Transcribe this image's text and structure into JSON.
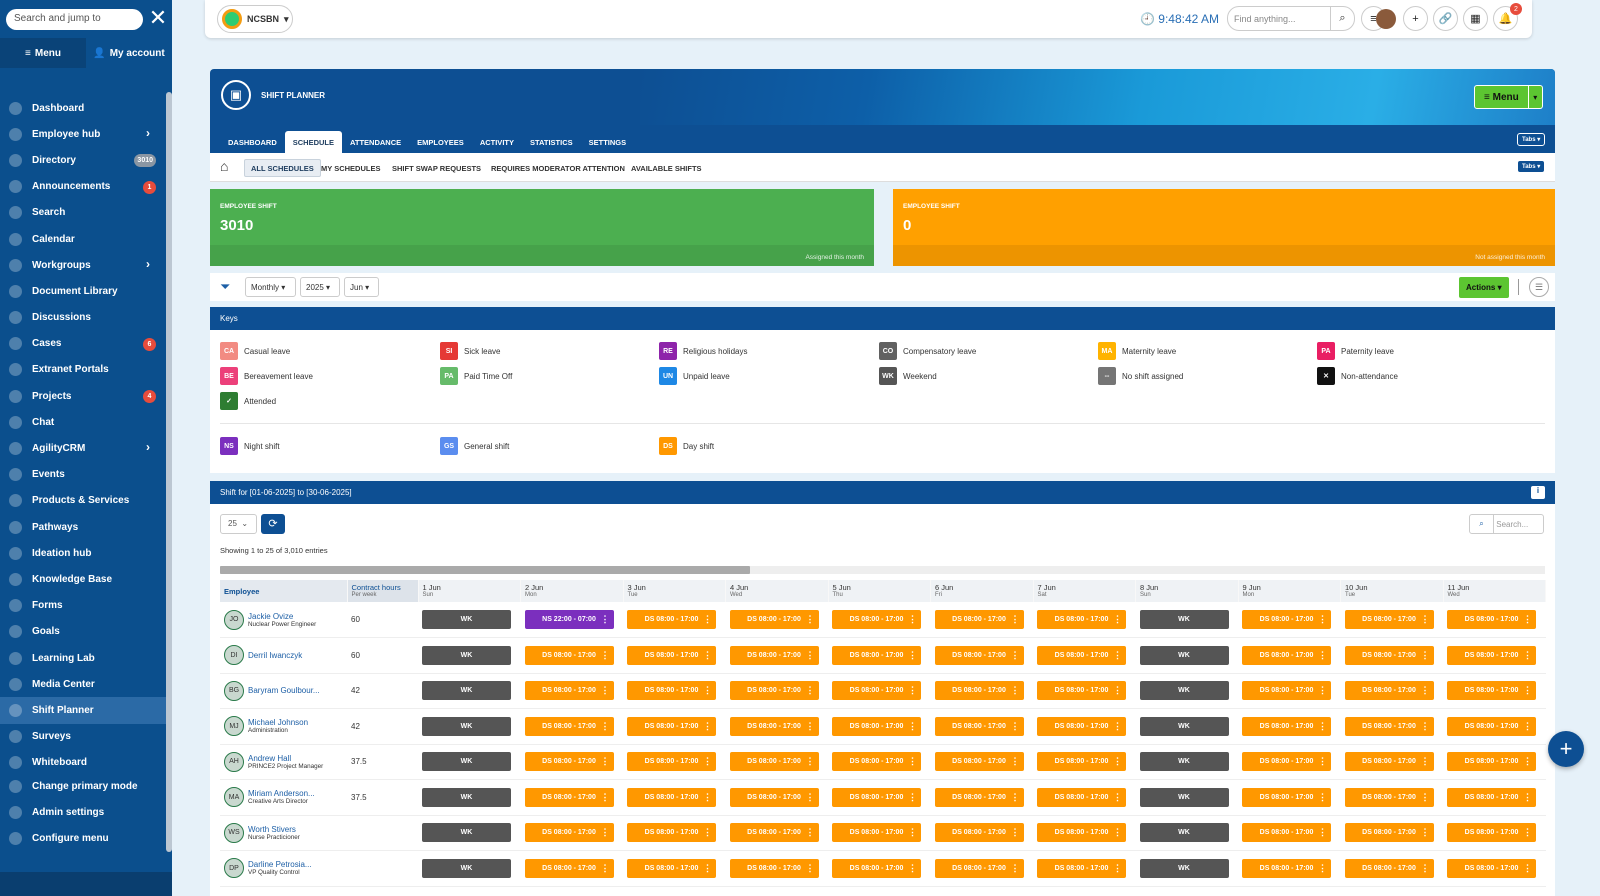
{
  "sidebar": {
    "search_placeholder": "Search and jump to",
    "tab_menu": "Menu",
    "tab_account": "My account",
    "items": [
      {
        "label": "Dashboard",
        "icon": "dashboard-icon"
      },
      {
        "label": "Employee hub",
        "icon": "people-icon",
        "chevron": true
      },
      {
        "label": "Directory",
        "icon": "directory-icon",
        "badge": "3010",
        "badge_style": "grey"
      },
      {
        "label": "Announcements",
        "icon": "megaphone-icon",
        "badge": "1"
      },
      {
        "label": "Search",
        "icon": "search-icon"
      },
      {
        "label": "Calendar",
        "icon": "calendar-icon"
      },
      {
        "label": "Workgroups",
        "icon": "group-icon",
        "chevron": true
      },
      {
        "label": "Document Library",
        "icon": "document-icon"
      },
      {
        "label": "Discussions",
        "icon": "chat-bubble-icon"
      },
      {
        "label": "Cases",
        "icon": "briefcase-icon",
        "badge": "6"
      },
      {
        "label": "Extranet Portals",
        "icon": "portal-icon"
      },
      {
        "label": "Projects",
        "icon": "project-icon",
        "badge": "4"
      },
      {
        "label": "Chat",
        "icon": "chat-icon"
      },
      {
        "label": "AgilityCRM",
        "icon": "crm-icon",
        "chevron": true
      },
      {
        "label": "Events",
        "icon": "event-icon"
      },
      {
        "label": "Products & Services",
        "icon": "product-icon"
      },
      {
        "label": "Pathways",
        "icon": "pathway-icon"
      },
      {
        "label": "Ideation hub",
        "icon": "lightbulb-icon"
      },
      {
        "label": "Knowledge Base",
        "icon": "book-icon"
      },
      {
        "label": "Forms",
        "icon": "form-icon"
      },
      {
        "label": "Goals",
        "icon": "target-icon"
      },
      {
        "label": "Learning Lab",
        "icon": "graduation-icon"
      },
      {
        "label": "Media Center",
        "icon": "media-icon"
      },
      {
        "label": "Shift Planner",
        "icon": "shift-icon",
        "active": true
      },
      {
        "label": "Surveys",
        "icon": "survey-icon"
      },
      {
        "label": "Whiteboard",
        "icon": "whiteboard-icon"
      }
    ],
    "bottom": [
      {
        "label": "Change primary mode",
        "icon": "swap-icon"
      },
      {
        "label": "Admin settings",
        "icon": "settings-icon"
      },
      {
        "label": "Configure menu",
        "icon": "configure-icon"
      }
    ]
  },
  "topbar": {
    "org_name": "NCSBN",
    "time": "9:48:42 AM",
    "find_placeholder": "Find anything...",
    "notification_count": "2"
  },
  "header": {
    "title": "SHIFT PLANNER",
    "menu_label": "Menu",
    "tabs": [
      "DASHBOARD",
      "SCHEDULE",
      "ATTENDANCE",
      "EMPLOYEES",
      "ACTIVITY",
      "STATISTICS",
      "SETTINGS"
    ],
    "active_tab": 1,
    "tabs_button": "Tabs"
  },
  "subtabs": {
    "items": [
      "ALL SCHEDULES",
      "MY SCHEDULES",
      "SHIFT SWAP REQUESTS",
      "REQUIRES MODERATOR ATTENTION",
      "AVAILABLE SHIFTS"
    ],
    "active": 0,
    "tabs_button": "Tabs"
  },
  "cards": [
    {
      "label": "EMPLOYEE SHIFT",
      "value": "3010",
      "sub": "Assigned this month",
      "color": "#4caf50"
    },
    {
      "label": "EMPLOYEE SHIFT",
      "value": "0",
      "sub": "Not assigned this month",
      "color": "#ffa000"
    }
  ],
  "filters": {
    "period": "Monthly",
    "year": "2025",
    "month": "Jun",
    "actions_label": "Actions"
  },
  "keys": {
    "title": "Keys",
    "items": [
      {
        "code": "CA",
        "label": "Casual leave",
        "color": "#f28b82"
      },
      {
        "code": "SI",
        "label": "Sick leave",
        "color": "#e53935"
      },
      {
        "code": "RE",
        "label": "Religious holidays",
        "color": "#8e24aa"
      },
      {
        "code": "CO",
        "label": "Compensatory leave",
        "color": "#616161"
      },
      {
        "code": "MA",
        "label": "Maternity leave",
        "color": "#ffb300"
      },
      {
        "code": "PA",
        "label": "Paternity leave",
        "color": "#e91e63"
      },
      {
        "code": "BE",
        "label": "Bereavement leave",
        "color": "#ec407a"
      },
      {
        "code": "PA",
        "label": "Paid Time Off",
        "color": "#66bb6a"
      },
      {
        "code": "UN",
        "label": "Unpaid leave",
        "color": "#1e88e5"
      },
      {
        "code": "WK",
        "label": "Weekend",
        "color": "#555555"
      },
      {
        "code": "--",
        "label": "No shift assigned",
        "color": "#757575"
      },
      {
        "code": "✕",
        "label": "Non-attendance",
        "color": "#111111"
      },
      {
        "code": "✓",
        "label": "Attended",
        "color": "#2e7d32"
      }
    ],
    "shift_items": [
      {
        "code": "NS",
        "label": "Night shift",
        "color": "#7b2fbe"
      },
      {
        "code": "GS",
        "label": "General shift",
        "color": "#5b8def"
      },
      {
        "code": "DS",
        "label": "Day shift",
        "color": "#ff9800"
      }
    ]
  },
  "shifts": {
    "title": "Shift for [01-06-2025] to [30-06-2025]",
    "page_size": "25",
    "showing": "Showing 1 to 25 of 3,010 entries",
    "search_placeholder": "Search...",
    "col_employee": "Employee",
    "col_contract": "Contract hours",
    "col_contract_sub": "Per week",
    "days": [
      {
        "date": "1 Jun",
        "dow": "Sun"
      },
      {
        "date": "2 Jun",
        "dow": "Mon"
      },
      {
        "date": "3 Jun",
        "dow": "Tue"
      },
      {
        "date": "4 Jun",
        "dow": "Wed"
      },
      {
        "date": "5 Jun",
        "dow": "Thu"
      },
      {
        "date": "6 Jun",
        "dow": "Fri"
      },
      {
        "date": "7 Jun",
        "dow": "Sat"
      },
      {
        "date": "8 Jun",
        "dow": "Sun"
      },
      {
        "date": "9 Jun",
        "dow": "Mon"
      },
      {
        "date": "10 Jun",
        "dow": "Tue"
      },
      {
        "date": "11 Jun",
        "dow": "Wed"
      }
    ],
    "rows": [
      {
        "initials": "JO",
        "name": "Jackie Ovize",
        "role": "Nuclear Power Engineer",
        "hours": "60",
        "cells": [
          "WK",
          "NS 22:00 - 07:00",
          "DS 08:00 - 17:00",
          "DS 08:00 - 17:00",
          "DS 08:00 - 17:00",
          "DS 08:00 - 17:00",
          "DS 08:00 - 17:00",
          "WK",
          "DS 08:00 - 17:00",
          "DS 08:00 - 17:00",
          "DS 08:00 - 17:00"
        ]
      },
      {
        "initials": "DI",
        "name": "Derril Iwanczyk",
        "role": "",
        "hours": "60",
        "cells": [
          "WK",
          "DS 08:00 - 17:00",
          "DS 08:00 - 17:00",
          "DS 08:00 - 17:00",
          "DS 08:00 - 17:00",
          "DS 08:00 - 17:00",
          "DS 08:00 - 17:00",
          "WK",
          "DS 08:00 - 17:00",
          "DS 08:00 - 17:00",
          "DS 08:00 - 17:00"
        ]
      },
      {
        "initials": "BG",
        "name": "Baryram Goulbour...",
        "role": "",
        "hours": "42",
        "cells": [
          "WK",
          "DS 08:00 - 17:00",
          "DS 08:00 - 17:00",
          "DS 08:00 - 17:00",
          "DS 08:00 - 17:00",
          "DS 08:00 - 17:00",
          "DS 08:00 - 17:00",
          "WK",
          "DS 08:00 - 17:00",
          "DS 08:00 - 17:00",
          "DS 08:00 - 17:00"
        ]
      },
      {
        "initials": "MJ",
        "name": "Michael Johnson",
        "role": "Administration",
        "hours": "42",
        "cells": [
          "WK",
          "DS 08:00 - 17:00",
          "DS 08:00 - 17:00",
          "DS 08:00 - 17:00",
          "DS 08:00 - 17:00",
          "DS 08:00 - 17:00",
          "DS 08:00 - 17:00",
          "WK",
          "DS 08:00 - 17:00",
          "DS 08:00 - 17:00",
          "DS 08:00 - 17:00"
        ]
      },
      {
        "initials": "AH",
        "name": "Andrew Hall",
        "role": "PRINCE2 Project Manager",
        "hours": "37.5",
        "cells": [
          "WK",
          "DS 08:00 - 17:00",
          "DS 08:00 - 17:00",
          "DS 08:00 - 17:00",
          "DS 08:00 - 17:00",
          "DS 08:00 - 17:00",
          "DS 08:00 - 17:00",
          "WK",
          "DS 08:00 - 17:00",
          "DS 08:00 - 17:00",
          "DS 08:00 - 17:00"
        ]
      },
      {
        "initials": "MA",
        "name": "Miriam Anderson...",
        "role": "Creative Arts Director",
        "hours": "37.5",
        "cells": [
          "WK",
          "DS 08:00 - 17:00",
          "DS 08:00 - 17:00",
          "DS 08:00 - 17:00",
          "DS 08:00 - 17:00",
          "DS 08:00 - 17:00",
          "DS 08:00 - 17:00",
          "WK",
          "DS 08:00 - 17:00",
          "DS 08:00 - 17:00",
          "DS 08:00 - 17:00"
        ]
      },
      {
        "initials": "WS",
        "name": "Worth Stivers",
        "role": "Nurse Practicioner",
        "hours": "",
        "cells": [
          "WK",
          "DS 08:00 - 17:00",
          "DS 08:00 - 17:00",
          "DS 08:00 - 17:00",
          "DS 08:00 - 17:00",
          "DS 08:00 - 17:00",
          "DS 08:00 - 17:00",
          "WK",
          "DS 08:00 - 17:00",
          "DS 08:00 - 17:00",
          "DS 08:00 - 17:00"
        ]
      },
      {
        "initials": "DP",
        "name": "Darline Petrosia...",
        "role": "VP Quality Control",
        "hours": "",
        "cells": [
          "WK",
          "DS 08:00 - 17:00",
          "DS 08:00 - 17:00",
          "DS 08:00 - 17:00",
          "DS 08:00 - 17:00",
          "DS 08:00 - 17:00",
          "DS 08:00 - 17:00",
          "WK",
          "DS 08:00 - 17:00",
          "DS 08:00 - 17:00",
          "DS 08:00 - 17:00"
        ]
      }
    ]
  }
}
